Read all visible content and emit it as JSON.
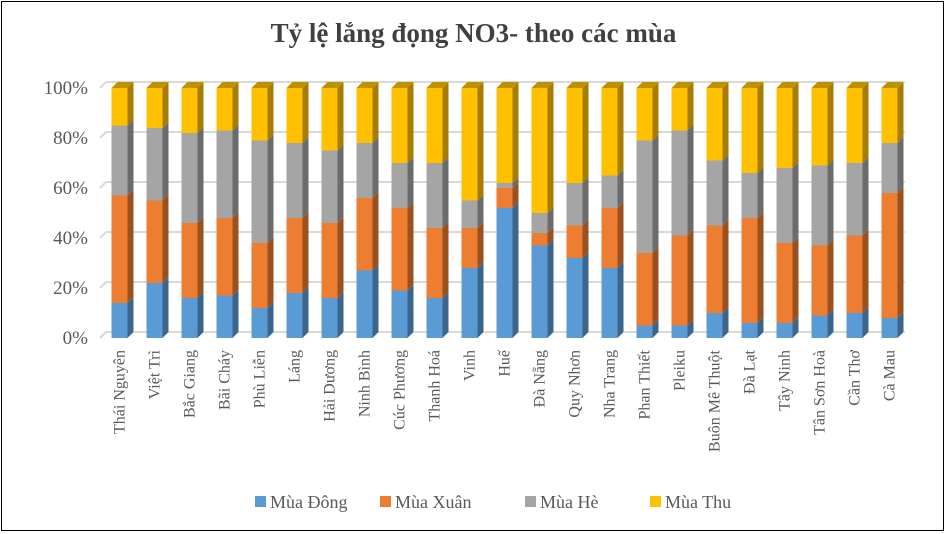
{
  "chart_data": {
    "type": "bar",
    "stacked": "percent",
    "title": "Tỷ lệ lắng đọng NO3- theo các mùa",
    "xlabel": "",
    "ylabel": "",
    "ylim": [
      0,
      100
    ],
    "yticks": [
      "0%",
      "20%",
      "40%",
      "60%",
      "80%",
      "100%"
    ],
    "grid": true,
    "legend": "bottom",
    "categories": [
      "Thái Nguyên",
      "Việt Trì",
      "Bắc Giang",
      "Bãi Cháy",
      "Phù Liễn",
      "Láng",
      "Hải Dương",
      "Ninh Bình",
      "Cúc Phương",
      "Thanh Hoá",
      "Vinh",
      "Huế",
      "Đà Nẵng",
      "Quy Nhơn",
      "Nha Trang",
      "Phan Thiết",
      "Pleiku",
      "Buôn Mê Thuột",
      "Đà Lạt",
      "Tây Ninh",
      "Tân Sơn Hoà",
      "Cần Thơ",
      "Cà Mau"
    ],
    "series": [
      {
        "name": "Mùa Đông",
        "color": "#5B9BD5",
        "values": [
          14,
          22,
          16,
          17,
          12,
          18,
          16,
          27,
          19,
          16,
          28,
          52,
          37,
          32,
          28,
          5,
          5,
          10,
          6,
          6,
          9,
          10,
          8
        ]
      },
      {
        "name": "Mùa Xuân",
        "color": "#ED7D31",
        "values": [
          43,
          33,
          30,
          31,
          26,
          30,
          30,
          29,
          33,
          28,
          16,
          8,
          5,
          13,
          24,
          29,
          36,
          35,
          42,
          32,
          28,
          31,
          50
        ]
      },
      {
        "name": "Mùa Hè",
        "color": "#A5A5A5",
        "values": [
          28,
          29,
          36,
          35,
          41,
          30,
          29,
          22,
          18,
          26,
          11,
          2,
          8,
          17,
          13,
          45,
          42,
          26,
          18,
          30,
          32,
          29,
          20
        ]
      },
      {
        "name": "Mùa Thu",
        "color": "#FFC000",
        "values": [
          15,
          16,
          18,
          17,
          21,
          22,
          25,
          22,
          30,
          30,
          45,
          38,
          50,
          38,
          35,
          21,
          17,
          29,
          34,
          32,
          31,
          30,
          22
        ]
      }
    ]
  }
}
